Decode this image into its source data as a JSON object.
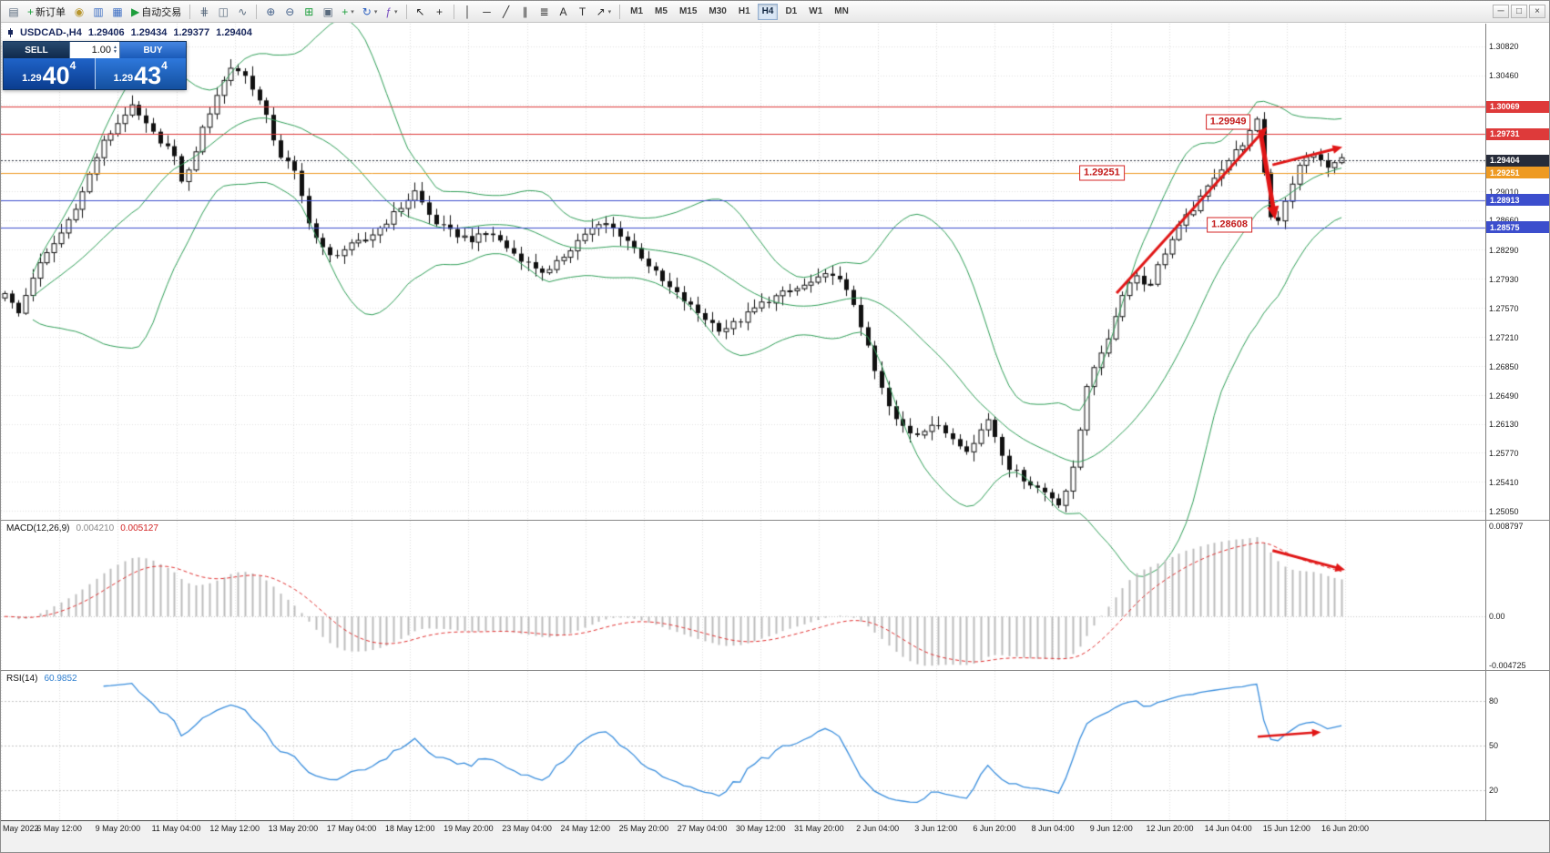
{
  "window": {
    "controls": [
      {
        "name": "minimize-button",
        "glyph": "─"
      },
      {
        "name": "maximize-button",
        "glyph": "□"
      },
      {
        "name": "close-button",
        "glyph": "×"
      }
    ]
  },
  "toolbar": {
    "items": [
      {
        "name": "charts-menu-button",
        "glyph": "▤",
        "color": "#5a6b7e"
      },
      {
        "name": "new-order-button",
        "glyph": "+",
        "color": "#1d9e3c",
        "label": "新订单"
      },
      {
        "name": "compass-button",
        "glyph": "◉",
        "color": "#b8962e"
      },
      {
        "name": "market-watch-button",
        "glyph": "▥",
        "color": "#3e6fc4"
      },
      {
        "name": "data-window-button",
        "glyph": "▦",
        "color": "#3e6fc4"
      },
      {
        "name": "autotrading-button",
        "glyph": "▶",
        "color": "#1d9e3c",
        "label": "自动交易"
      },
      {
        "sep": true
      },
      {
        "name": "bars-chart-button",
        "glyph": "⋕",
        "color": "#5a6b7e"
      },
      {
        "name": "candlestick-chart-button",
        "glyph": "◫",
        "color": "#5a6b7e"
      },
      {
        "name": "line-chart-button",
        "glyph": "∿",
        "color": "#5a6b7e"
      },
      {
        "sep": true
      },
      {
        "name": "zoom-in-button",
        "glyph": "⊕",
        "color": "#44618a"
      },
      {
        "name": "zoom-out-button",
        "glyph": "⊖",
        "color": "#44618a"
      },
      {
        "name": "tile-windows-button",
        "glyph": "⊞",
        "color": "#1d9e3c"
      },
      {
        "name": "cascade-windows-button",
        "glyph": "▣",
        "color": "#5a6b7e"
      },
      {
        "name": "new-chart-button",
        "glyph": "+",
        "color": "#1d9e3c",
        "dropdown": true
      },
      {
        "name": "profiles-button",
        "glyph": "↻",
        "color": "#2f62c0",
        "dropdown": true
      },
      {
        "name": "indicators-button",
        "glyph": "ƒ",
        "color": "#7a4fc0",
        "dropdown": true
      },
      {
        "sep": true
      },
      {
        "name": "cursor-tool",
        "glyph": "↖",
        "color": "#2a2a2a"
      },
      {
        "name": "crosshair-tool",
        "glyph": "+",
        "color": "#2a2a2a"
      },
      {
        "sep": true
      },
      {
        "name": "vertical-line-tool",
        "glyph": "│",
        "color": "#2a2a2a"
      },
      {
        "name": "horizontal-line-tool",
        "glyph": "─",
        "color": "#2a2a2a"
      },
      {
        "name": "trendline-tool",
        "glyph": "╱",
        "color": "#2a2a2a"
      },
      {
        "name": "channel-tool",
        "glyph": "∥",
        "color": "#2a2a2a"
      },
      {
        "name": "fibonacci-tool",
        "glyph": "≣",
        "color": "#2a2a2a"
      },
      {
        "name": "text-tool",
        "glyph": "A",
        "color": "#2a2a2a"
      },
      {
        "name": "label-tool",
        "glyph": "T",
        "color": "#2a2a2a"
      },
      {
        "name": "arrows-tool",
        "glyph": "↗",
        "color": "#2a2a2a",
        "dropdown": true
      },
      {
        "sep": true
      }
    ],
    "timeframes": [
      {
        "label": "M1"
      },
      {
        "label": "M5"
      },
      {
        "label": "M15"
      },
      {
        "label": "M30"
      },
      {
        "label": "H1"
      },
      {
        "label": "H4",
        "active": true
      },
      {
        "label": "D1"
      },
      {
        "label": "W1"
      },
      {
        "label": "MN"
      }
    ]
  },
  "trade_panel": {
    "sell_label": "SELL",
    "buy_label": "BUY",
    "volume": "1.00",
    "bid_small": "1.29",
    "bid_big": "40",
    "bid_sup": "4",
    "ask_small": "1.29",
    "ask_big": "43",
    "ask_sup": "4"
  },
  "chart_data": {
    "type": "candlestick",
    "symbol": "USDCAD-",
    "timeframe": "H4",
    "title": "USDCAD-,H4",
    "ohlc": {
      "open": "1.29406",
      "high": "1.29434",
      "low": "1.29377",
      "close": "1.29404"
    },
    "price_axis": {
      "top": 1.311,
      "bottom": 1.2495,
      "grid_start": 1.3082,
      "grid_step": 0.0036,
      "grid_count": 17,
      "labels": [
        "1.30820",
        "1.30460",
        "1.29010",
        "1.28660",
        "1.28290",
        "1.27930",
        "1.27570",
        "1.27210",
        "1.26850",
        "1.26490",
        "1.26130",
        "1.25770",
        "1.25410",
        "1.25050"
      ]
    },
    "levels": [
      {
        "text": "1.30069",
        "price": 1.30069,
        "color": "#de3a3a",
        "style": "solid",
        "role": "resistance"
      },
      {
        "text": "1.29731",
        "price": 1.29731,
        "color": "#de3a3a",
        "style": "solid",
        "role": "resistance"
      },
      {
        "text": "1.29404",
        "price": 1.29404,
        "color": "#272c3a",
        "style": "dotted",
        "role": "current-price"
      },
      {
        "text": "1.29251",
        "price": 1.29251,
        "color": "#ee9a22",
        "style": "solid",
        "role": "pivot"
      },
      {
        "text": "1.28913",
        "price": 1.28913,
        "color": "#3c4ecd",
        "style": "solid",
        "role": "support"
      },
      {
        "text": "1.28575",
        "price": 1.28575,
        "color": "#3c4ecd",
        "style": "solid",
        "role": "support"
      }
    ],
    "bollinger": {
      "period": 20,
      "deviation": 2,
      "color": "#2f9e57"
    },
    "candles": {
      "count": 190,
      "price_path": [
        [
          0.0,
          1.2778
        ],
        [
          0.01,
          1.2748
        ],
        [
          0.022,
          1.28
        ],
        [
          0.043,
          1.2852
        ],
        [
          0.058,
          1.29
        ],
        [
          0.072,
          1.2958
        ],
        [
          0.094,
          1.3008
        ],
        [
          0.11,
          1.2975
        ],
        [
          0.125,
          1.2952
        ],
        [
          0.134,
          1.2908
        ],
        [
          0.145,
          1.2965
        ],
        [
          0.158,
          1.302
        ],
        [
          0.17,
          1.3058
        ],
        [
          0.182,
          1.3042
        ],
        [
          0.194,
          1.3002
        ],
        [
          0.205,
          1.2948
        ],
        [
          0.216,
          1.293
        ],
        [
          0.23,
          1.2852
        ],
        [
          0.242,
          1.282
        ],
        [
          0.256,
          1.2832
        ],
        [
          0.27,
          1.2842
        ],
        [
          0.284,
          1.2862
        ],
        [
          0.296,
          1.2882
        ],
        [
          0.307,
          1.2902
        ],
        [
          0.32,
          1.2866
        ],
        [
          0.335,
          1.285
        ],
        [
          0.35,
          1.2842
        ],
        [
          0.363,
          1.2852
        ],
        [
          0.377,
          1.283
        ],
        [
          0.392,
          1.2812
        ],
        [
          0.406,
          1.28
        ],
        [
          0.42,
          1.2826
        ],
        [
          0.435,
          1.2852
        ],
        [
          0.449,
          1.2862
        ],
        [
          0.463,
          1.2846
        ],
        [
          0.478,
          1.2818
        ],
        [
          0.492,
          1.279
        ],
        [
          0.507,
          1.2768
        ],
        [
          0.521,
          1.2748
        ],
        [
          0.536,
          1.273
        ],
        [
          0.55,
          1.2742
        ],
        [
          0.565,
          1.2762
        ],
        [
          0.58,
          1.2774
        ],
        [
          0.594,
          1.2782
        ],
        [
          0.608,
          1.2792
        ],
        [
          0.62,
          1.2802
        ],
        [
          0.636,
          1.276
        ],
        [
          0.65,
          1.2682
        ],
        [
          0.665,
          1.262
        ],
        [
          0.68,
          1.26
        ],
        [
          0.694,
          1.2614
        ],
        [
          0.708,
          1.2598
        ],
        [
          0.722,
          1.258
        ],
        [
          0.735,
          1.2622
        ],
        [
          0.75,
          1.2562
        ],
        [
          0.765,
          1.2542
        ],
        [
          0.779,
          1.2528
        ],
        [
          0.79,
          1.2514
        ],
        [
          0.8,
          1.2562
        ],
        [
          0.811,
          1.2678
        ],
        [
          0.822,
          1.2702
        ],
        [
          0.833,
          1.2762
        ],
        [
          0.844,
          1.2802
        ],
        [
          0.855,
          1.2782
        ],
        [
          0.866,
          1.2822
        ],
        [
          0.88,
          1.2862
        ],
        [
          0.894,
          1.2892
        ],
        [
          0.905,
          1.2922
        ],
        [
          0.916,
          1.2942
        ],
        [
          0.927,
          1.2964
        ],
        [
          0.938,
          1.2992
        ],
        [
          0.945,
          1.2872
        ],
        [
          0.952,
          1.2866
        ],
        [
          0.96,
          1.2902
        ],
        [
          0.968,
          1.2932
        ],
        [
          0.978,
          1.2952
        ],
        [
          0.988,
          1.293
        ],
        [
          1.0,
          1.2942
        ]
      ]
    },
    "macd": {
      "label": "MACD(12,26,9)",
      "value": "0.004210",
      "signal_value": "0.005127",
      "axis_labels": [
        "0.008797",
        "0.00",
        "-0.004725"
      ],
      "scale_top": 0.0093,
      "scale_bottom": -0.0052,
      "histogram_color": "#bcbcbc",
      "signal_color": "#e03030"
    },
    "rsi": {
      "label": "RSI(14)",
      "value": "60.9852",
      "levels": [
        "80",
        "50",
        "20"
      ],
      "color": "#3a8edd"
    },
    "time_labels": [
      "May 2022",
      "6 May 12:00",
      "9 May 20:00",
      "11 May 04:00",
      "12 May 12:00",
      "13 May 20:00",
      "17 May 04:00",
      "18 May 12:00",
      "19 May 20:00",
      "23 May 04:00",
      "24 May 12:00",
      "25 May 20:00",
      "27 May 04:00",
      "30 May 12:00",
      "31 May 20:00",
      "2 Jun 04:00",
      "3 Jun 12:00",
      "6 Jun 20:00",
      "8 Jun 04:00",
      "9 Jun 12:00",
      "12 Jun 20:00",
      "14 Jun 04:00",
      "15 Jun 12:00",
      "16 Jun 20:00"
    ],
    "annotations": {
      "arrow_color": "#e01616",
      "price_boxes": [
        {
          "text": "1.29949",
          "t": 0.913,
          "price": 1.2988
        },
        {
          "text": "1.29251",
          "t": 0.819,
          "price": 1.29251
        },
        {
          "text": "1.28608",
          "t": 0.914,
          "price": 1.28608
        }
      ],
      "arrows": [
        {
          "pane": "price",
          "x1": 0.83,
          "y1": 1.2776,
          "x2": 0.942,
          "y2": 1.2982,
          "w": 3
        },
        {
          "pane": "price",
          "x1": 0.937,
          "y1": 1.2976,
          "x2": 0.948,
          "y2": 1.2867,
          "w": 5
        },
        {
          "pane": "price",
          "x1": 0.946,
          "y1": 1.2935,
          "x2": 0.998,
          "y2": 1.2957,
          "w": 3
        },
        {
          "pane": "macd",
          "x1": 0.946,
          "y1": 0.2,
          "x2": 1.0,
          "y2": 0.33,
          "w": 3
        },
        {
          "pane": "rsi",
          "x1": 0.935,
          "y1": 0.44,
          "x2": 0.982,
          "y2": 0.41,
          "w": 2.5
        }
      ]
    }
  }
}
